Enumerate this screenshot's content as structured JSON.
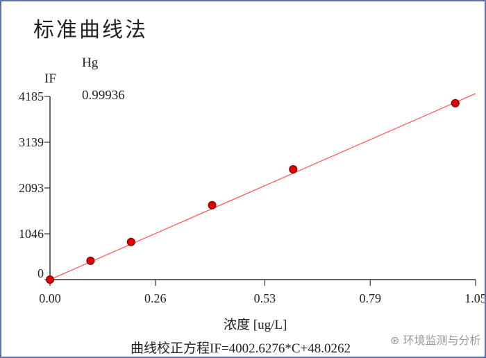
{
  "chart_data": {
    "type": "scatter",
    "title": "标准曲线法",
    "series_label": "Hg",
    "correlation": "0.99936",
    "xlabel": "浓度 [ug/L]",
    "ylabel": "IF",
    "equation": "曲线校正方程IF=4002.6276*C+48.0262",
    "xlim": [
      0,
      1.05
    ],
    "ylim": [
      0,
      4185
    ],
    "xticks": [
      "0.00",
      "0.26",
      "0.53",
      "0.79",
      "1.05"
    ],
    "yticks": [
      "0",
      "1046",
      "2093",
      "3139",
      "4185"
    ],
    "points": {
      "x": [
        0,
        0.1,
        0.2,
        0.4,
        0.6,
        1.0
      ],
      "y": [
        0,
        430,
        860,
        1700,
        2520,
        4030
      ]
    },
    "fit": {
      "slope": 4002.6276,
      "intercept": 48.0262
    },
    "grid": false,
    "colors": {
      "points": "#e00000",
      "line": "#ff5a5a",
      "frame": "#5b6fb5"
    }
  },
  "watermark": "环境监测与分析"
}
